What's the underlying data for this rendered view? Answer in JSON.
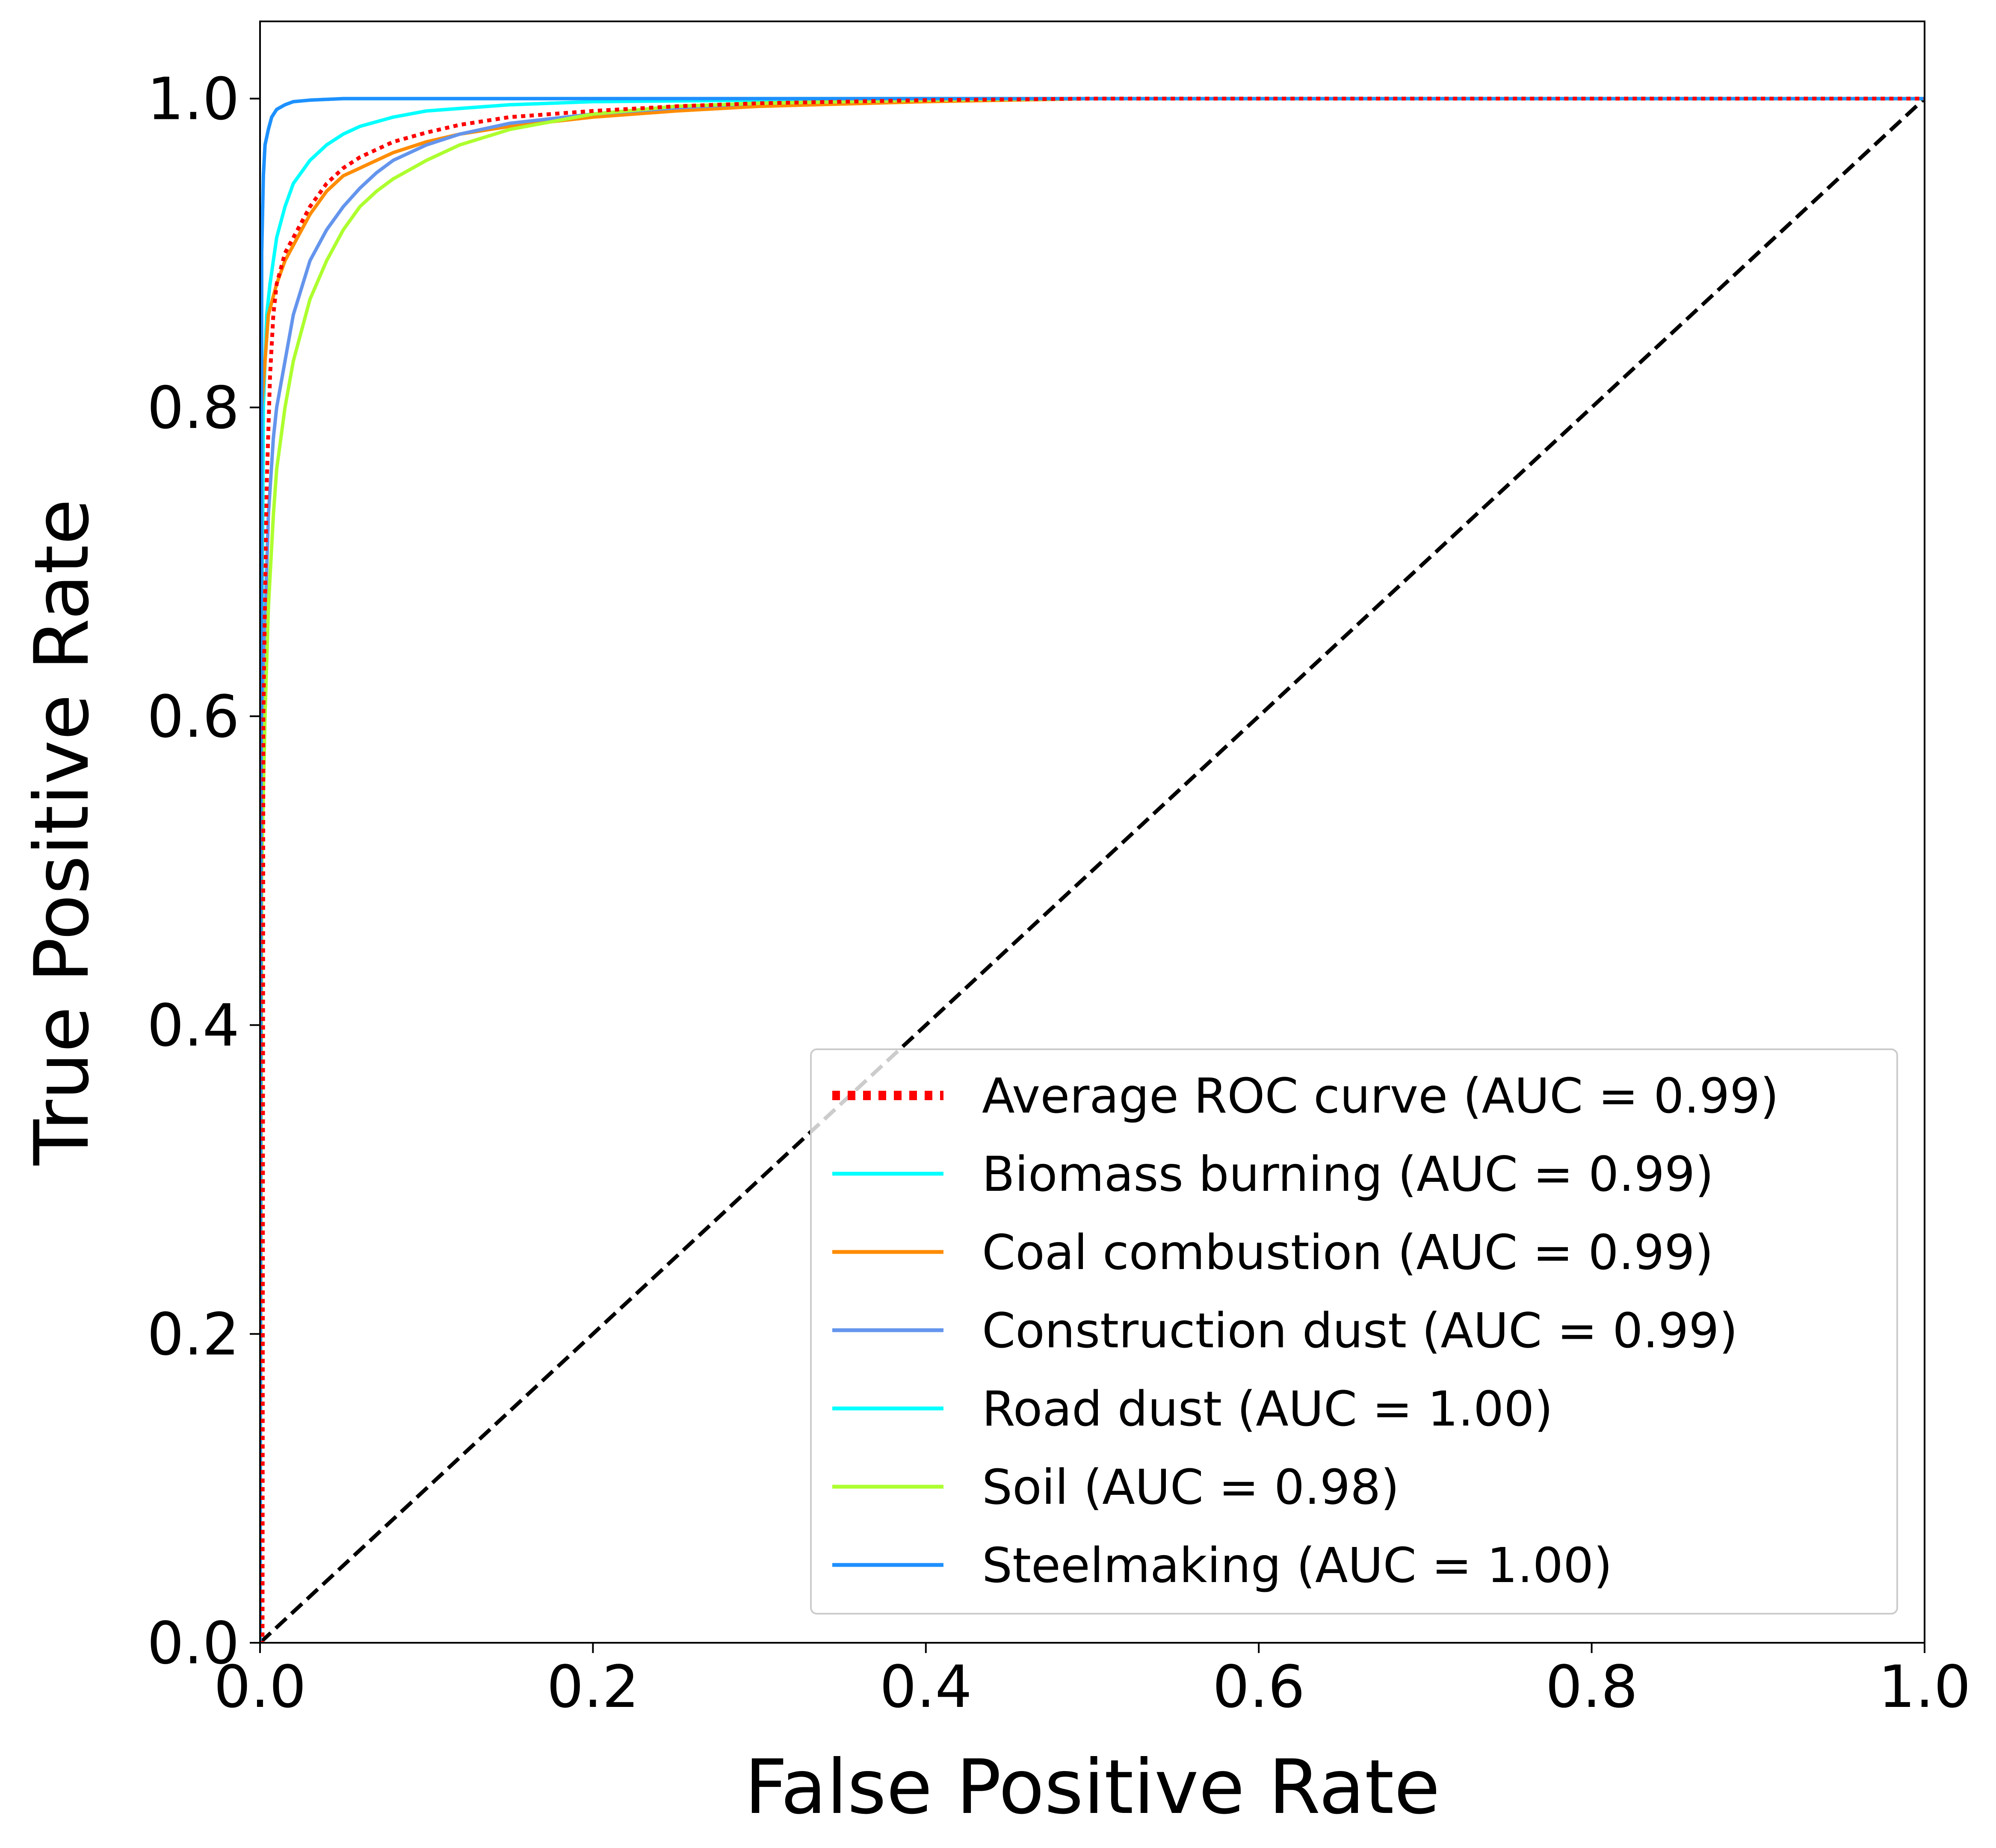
{
  "chart_data": {
    "type": "line",
    "title": "",
    "xlabel": "False Positive Rate",
    "ylabel": "True Positive Rate",
    "xlim": [
      0.0,
      1.0
    ],
    "ylim": [
      0.0,
      1.05
    ],
    "x_ticks": [
      0.0,
      0.2,
      0.4,
      0.6,
      0.8,
      1.0
    ],
    "y_ticks": [
      0.0,
      0.2,
      0.4,
      0.6,
      0.8,
      1.0
    ],
    "x_tick_labels": [
      "0.0",
      "0.2",
      "0.4",
      "0.6",
      "0.8",
      "1.0"
    ],
    "y_tick_labels": [
      "0.0",
      "0.2",
      "0.4",
      "0.6",
      "0.8",
      "1.0"
    ],
    "grid": false,
    "legend_position": "lower-right",
    "series": [
      {
        "name": "Average ROC curve (AUC = 0.99)",
        "color": "#ff0000",
        "style": "dotted",
        "x": [
          0.0,
          0.0015,
          0.002,
          0.004,
          0.006,
          0.008,
          0.01,
          0.015,
          0.02,
          0.03,
          0.04,
          0.05,
          0.06,
          0.08,
          0.1,
          0.12,
          0.15,
          0.2,
          0.25,
          0.3,
          0.4,
          0.5,
          0.7,
          1.0
        ],
        "y": [
          0.0,
          0.0,
          0.6,
          0.75,
          0.82,
          0.86,
          0.88,
          0.9,
          0.91,
          0.93,
          0.945,
          0.955,
          0.962,
          0.972,
          0.978,
          0.983,
          0.988,
          0.992,
          0.995,
          0.997,
          0.999,
          1.0,
          1.0,
          1.0
        ]
      },
      {
        "name": "Biomass burning (AUC = 0.99)",
        "color": "#00ffff",
        "style": "solid",
        "x": [
          0.0,
          0.001,
          0.002,
          0.004,
          0.006,
          0.01,
          0.015,
          0.02,
          0.03,
          0.04,
          0.05,
          0.06,
          0.08,
          0.1,
          0.15,
          0.2,
          0.3,
          0.5,
          1.0
        ],
        "y": [
          0.0,
          0.62,
          0.8,
          0.86,
          0.88,
          0.91,
          0.93,
          0.945,
          0.96,
          0.97,
          0.977,
          0.982,
          0.988,
          0.992,
          0.996,
          0.998,
          0.999,
          1.0,
          1.0
        ]
      },
      {
        "name": "Coal combustion (AUC = 0.99)",
        "color": "#ff8c00",
        "style": "solid",
        "x": [
          0.0,
          0.001,
          0.003,
          0.005,
          0.01,
          0.015,
          0.02,
          0.03,
          0.04,
          0.05,
          0.06,
          0.08,
          0.1,
          0.12,
          0.15,
          0.2,
          0.25,
          0.3,
          0.4,
          0.5,
          1.0
        ],
        "y": [
          0.0,
          0.8,
          0.83,
          0.86,
          0.88,
          0.895,
          0.905,
          0.925,
          0.94,
          0.95,
          0.955,
          0.965,
          0.972,
          0.977,
          0.982,
          0.988,
          0.992,
          0.995,
          0.998,
          1.0,
          1.0
        ]
      },
      {
        "name": "Construction dust (AUC = 0.99)",
        "color": "#6495ed",
        "style": "solid",
        "x": [
          0.0,
          0.001,
          0.003,
          0.005,
          0.008,
          0.01,
          0.015,
          0.02,
          0.03,
          0.04,
          0.05,
          0.06,
          0.07,
          0.08,
          0.1,
          0.12,
          0.15,
          0.2,
          0.25,
          0.3,
          0.4,
          0.5,
          1.0
        ],
        "y": [
          0.0,
          0.55,
          0.66,
          0.73,
          0.78,
          0.8,
          0.83,
          0.86,
          0.895,
          0.915,
          0.93,
          0.942,
          0.952,
          0.96,
          0.97,
          0.977,
          0.984,
          0.99,
          0.994,
          0.997,
          0.999,
          1.0,
          1.0
        ]
      },
      {
        "name": "Road dust (AUC = 1.00)",
        "color": "#00ffff",
        "style": "solid",
        "x": [
          0.0,
          0.001,
          0.002,
          0.003,
          0.005,
          0.007,
          0.01,
          0.015,
          0.02,
          0.03,
          0.05,
          0.1,
          1.0
        ],
        "y": [
          0.0,
          0.9,
          0.95,
          0.97,
          0.98,
          0.988,
          0.993,
          0.996,
          0.998,
          0.999,
          1.0,
          1.0,
          1.0
        ]
      },
      {
        "name": "Soil (AUC = 0.98)",
        "color": "#adff2f",
        "style": "solid",
        "x": [
          0.0,
          0.001,
          0.003,
          0.005,
          0.008,
          0.01,
          0.015,
          0.02,
          0.03,
          0.04,
          0.05,
          0.06,
          0.07,
          0.08,
          0.1,
          0.12,
          0.15,
          0.2,
          0.25,
          0.3,
          0.4,
          0.5,
          1.0
        ],
        "y": [
          0.0,
          0.5,
          0.6,
          0.67,
          0.73,
          0.76,
          0.8,
          0.83,
          0.87,
          0.895,
          0.915,
          0.93,
          0.94,
          0.948,
          0.96,
          0.97,
          0.98,
          0.99,
          0.995,
          0.997,
          0.999,
          1.0,
          1.0
        ]
      },
      {
        "name": "Steelmaking (AUC = 1.00)",
        "color": "#1e90ff",
        "style": "solid",
        "x": [
          0.0,
          0.001,
          0.002,
          0.003,
          0.005,
          0.007,
          0.01,
          0.015,
          0.02,
          0.03,
          0.05,
          0.1,
          1.0
        ],
        "y": [
          0.0,
          0.9,
          0.95,
          0.97,
          0.98,
          0.988,
          0.993,
          0.996,
          0.998,
          0.999,
          1.0,
          1.0,
          1.0
        ]
      }
    ],
    "reference_line": {
      "style": "dashed",
      "color": "#000000",
      "x": [
        0.0,
        1.0
      ],
      "y": [
        0.0,
        1.0
      ]
    }
  }
}
